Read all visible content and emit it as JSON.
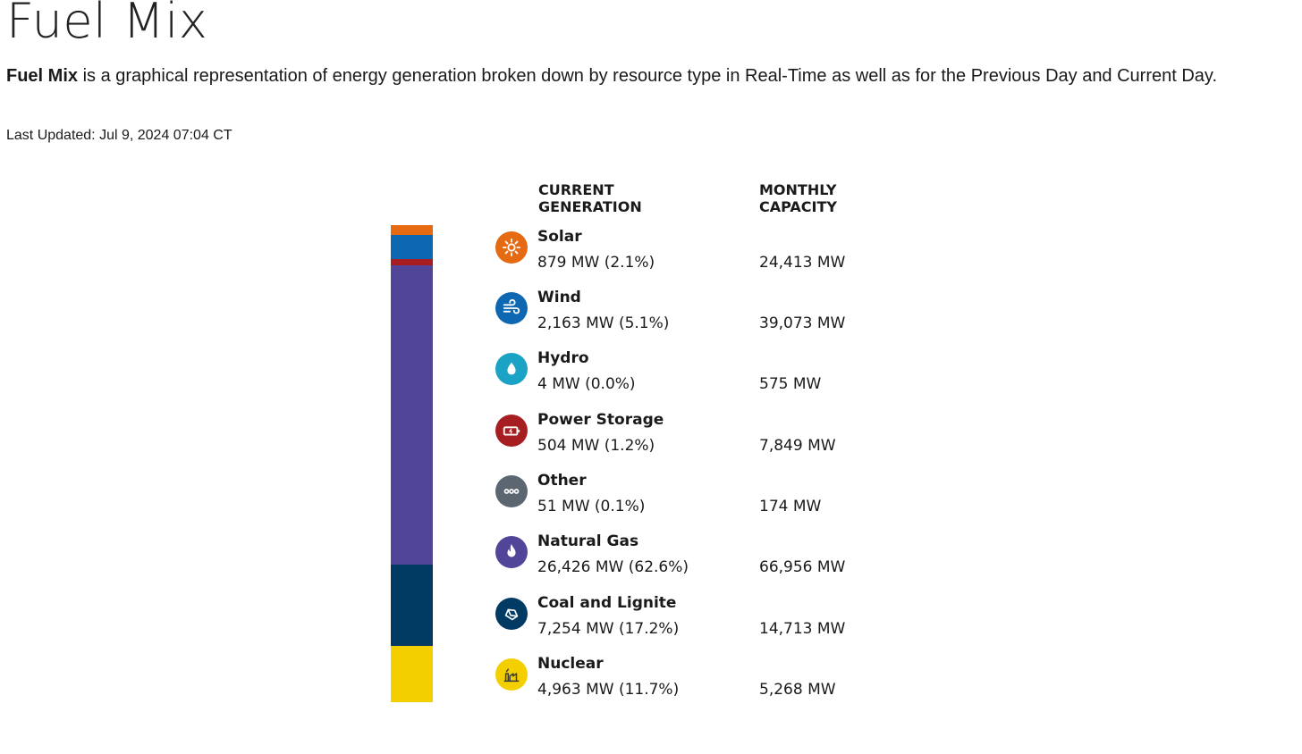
{
  "page": {
    "title": "Fuel Mix",
    "intro_bold": "Fuel Mix",
    "intro_rest": " is a graphical representation of energy generation broken down by resource type in Real-Time as well as for the Previous Day and Current Day.",
    "last_updated": "Last Updated: Jul 9, 2024 07:04 CT"
  },
  "headers": {
    "current_line1": "CURRENT",
    "current_line2": "GENERATION",
    "capacity_line1": "MONTHLY",
    "capacity_line2": "CAPACITY"
  },
  "fuels": [
    {
      "name": "Solar",
      "generation": "879 MW (2.1%)",
      "capacity": "24,413 MW",
      "icon": "sun-icon",
      "color": "#E56A12",
      "share": 2.1
    },
    {
      "name": "Wind",
      "generation": "2,163 MW (5.1%)",
      "capacity": "39,073 MW",
      "icon": "wind-icon",
      "color": "#0E67B1",
      "share": 5.1
    },
    {
      "name": "Hydro",
      "generation": "4 MW (0.0%)",
      "capacity": "575 MW",
      "icon": "water-drop-icon",
      "color": "#1AA3C4",
      "share": 0.0
    },
    {
      "name": "Power Storage",
      "generation": "504 MW (1.2%)",
      "capacity": "7,849 MW",
      "icon": "battery-icon",
      "color": "#A61E22",
      "share": 1.2
    },
    {
      "name": "Other",
      "generation": "51 MW (0.1%)",
      "capacity": "174 MW",
      "icon": "more-dots-icon",
      "color": "#5B6670",
      "share": 0.1
    },
    {
      "name": "Natural Gas",
      "generation": "26,426 MW (62.6%)",
      "capacity": "66,956 MW",
      "icon": "flame-icon",
      "color": "#51459A",
      "share": 62.6
    },
    {
      "name": "Coal and Lignite",
      "generation": "7,254 MW (17.2%)",
      "capacity": "14,713 MW",
      "icon": "coal-rock-icon",
      "color": "#013A63",
      "share": 17.2
    },
    {
      "name": "Nuclear",
      "generation": "4,963 MW (11.7%)",
      "capacity": "5,268 MW",
      "icon": "nuclear-plant-icon",
      "color": "#F3CF00",
      "share": 11.7
    }
  ]
}
